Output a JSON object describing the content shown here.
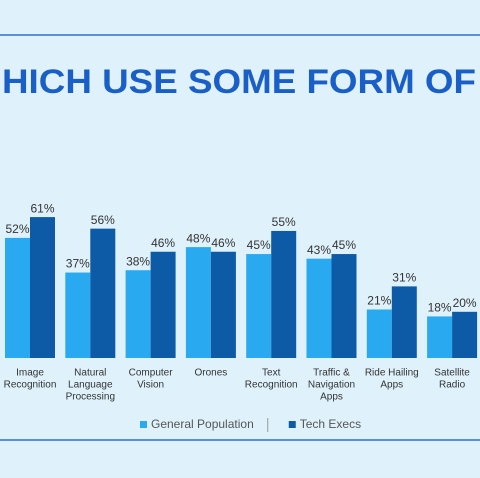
{
  "chart_data": {
    "type": "bar",
    "title": "HICH USE SOME FORM OF",
    "categories": [
      [
        "Image",
        "Recognition"
      ],
      [
        "Natural",
        "Language",
        "Processing"
      ],
      [
        "Computer",
        "Vision"
      ],
      [
        "Orones"
      ],
      [
        "Text",
        "Recognition"
      ],
      [
        "Traffic &",
        "Navigation",
        "Apps"
      ],
      [
        "Ride Hailing",
        "Apps"
      ],
      [
        "Satellite",
        "Radio"
      ]
    ],
    "series": [
      {
        "name": "General Population",
        "color": "#29aaf0",
        "values": [
          52,
          37,
          38,
          48,
          45,
          43,
          21,
          18
        ],
        "value_labels": [
          "52%",
          "37%",
          "38%",
          "48%",
          "45%",
          "43%",
          "21%",
          "18%"
        ]
      },
      {
        "name": "Tech Execs",
        "color": "#0d5aa7",
        "values": [
          61,
          56,
          46,
          46,
          55,
          45,
          31,
          20
        ],
        "value_labels": [
          "61%",
          "56%",
          "46%",
          "46%",
          "55%",
          "45%",
          "31%",
          "20%"
        ]
      }
    ],
    "ylim": [
      0,
      100
    ]
  }
}
